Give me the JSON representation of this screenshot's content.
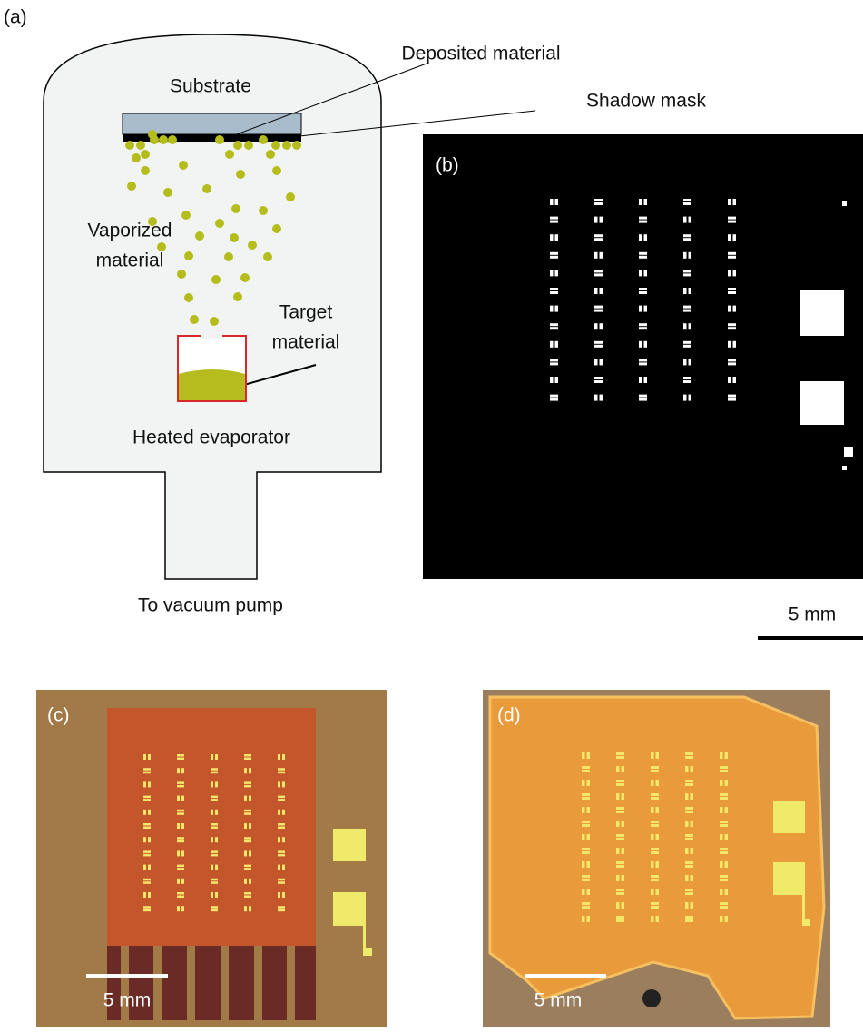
{
  "panels": {
    "a": {
      "label": "(a)",
      "substrate": "Substrate",
      "deposited": "Deposited material",
      "shadow_mask": "Shadow mask",
      "vaporized": [
        "Vaporized",
        "material"
      ],
      "target": [
        "Target",
        "material"
      ],
      "evaporator": "Heated evaporator",
      "pump": "To vacuum pump"
    },
    "b": {
      "label": "(b)",
      "scale_bar": "5 mm"
    },
    "c": {
      "label": "(c)",
      "scale_bar": "5 mm"
    },
    "d": {
      "label": "(d)",
      "scale_bar": "5 mm"
    }
  }
}
